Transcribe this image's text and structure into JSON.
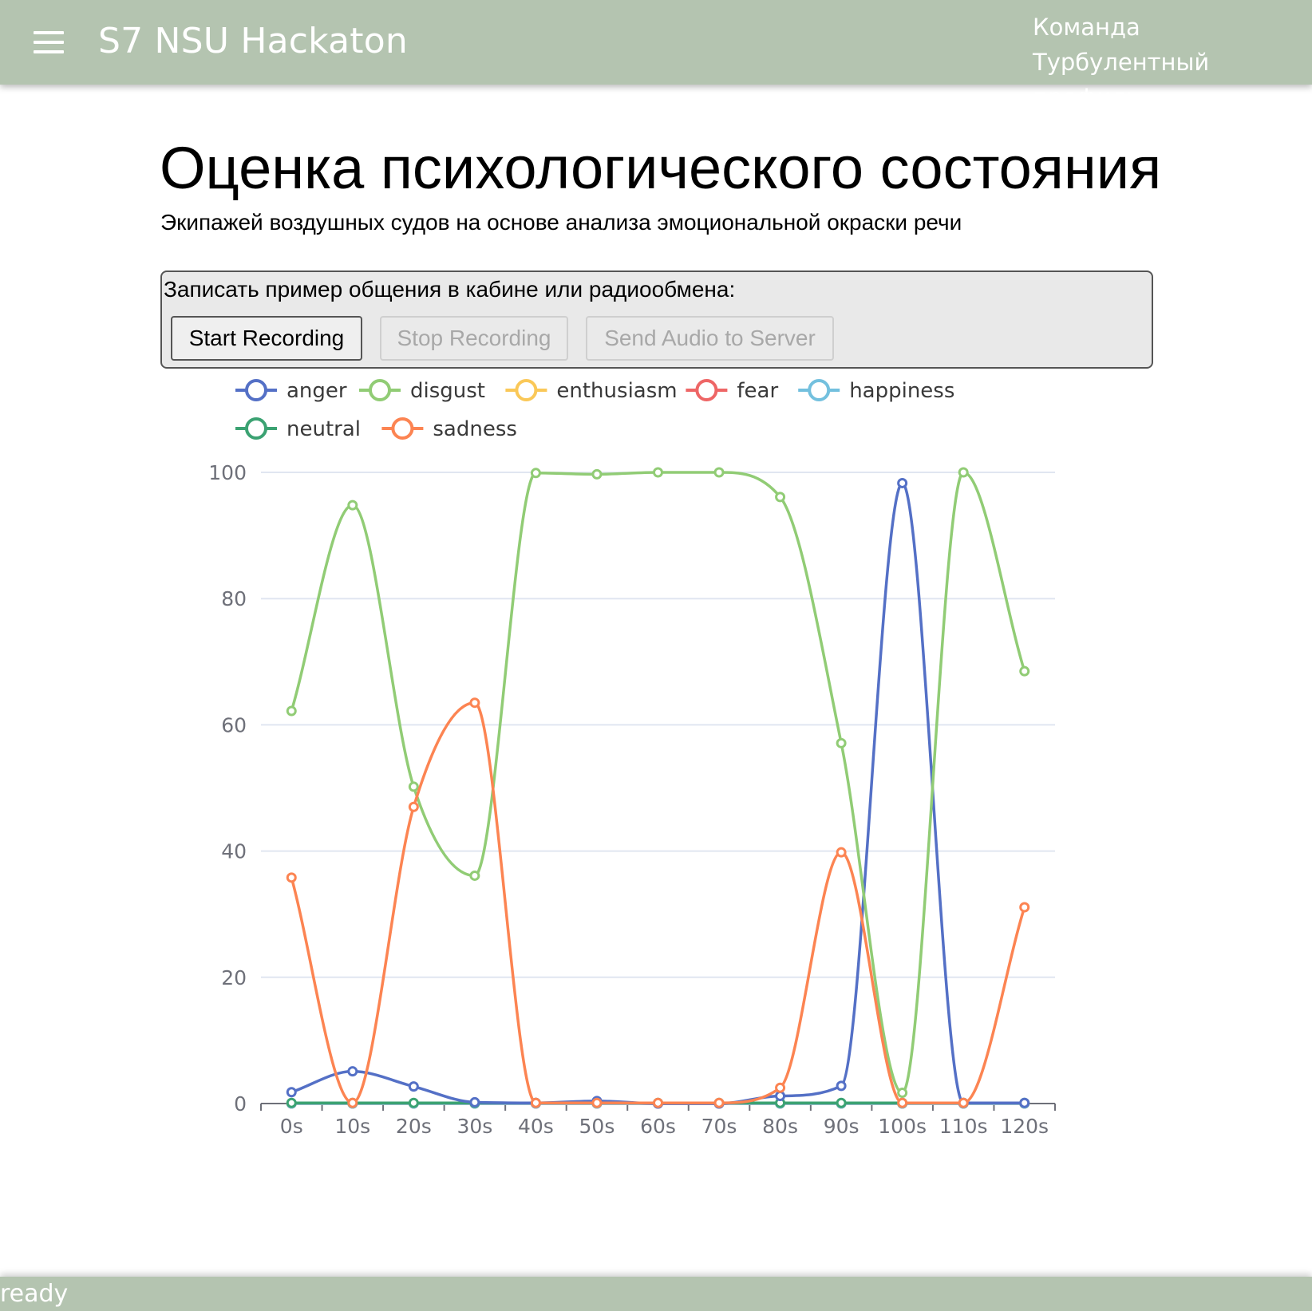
{
  "header": {
    "app_title": "S7 NSU Hackaton",
    "team_line1": "Команда",
    "team_line2": "Турбулентный профиль",
    "menu_icon": "hamburger-menu-icon",
    "bar_color": "#b4c4b0"
  },
  "main": {
    "title": "Оценка психологического состояния",
    "subtitle": "Экипажей воздушных судов на основе анализа эмоциональной окраски речи"
  },
  "recorder": {
    "label": "Записать пример общения в кабине или радиообмена:",
    "start_label": "Start Recording",
    "stop_label": "Stop Recording",
    "send_label": "Send Audio to Server",
    "stop_disabled": true,
    "send_disabled": true
  },
  "status": {
    "text": "ready"
  },
  "chart_data": {
    "type": "line",
    "smooth": true,
    "title": "",
    "xlabel": "",
    "ylabel": "",
    "categories": [
      "0s",
      "10s",
      "20s",
      "30s",
      "40s",
      "50s",
      "60s",
      "70s",
      "80s",
      "90s",
      "100s",
      "110s",
      "120s"
    ],
    "ylim": [
      0,
      100
    ],
    "yticks": [
      0,
      20,
      40,
      60,
      80,
      100
    ],
    "grid": true,
    "legend_position": "top-left",
    "series": [
      {
        "name": "anger",
        "color": "#5470c6",
        "values": [
          1.8,
          5.1,
          2.7,
          0.2,
          0.1,
          0.4,
          0.0,
          0.0,
          1.2,
          2.8,
          98.3,
          0.1,
          0.1
        ]
      },
      {
        "name": "disgust",
        "color": "#91cc75",
        "values": [
          62.2,
          94.8,
          50.2,
          36.1,
          99.9,
          99.7,
          100.0,
          100.0,
          96.1,
          57.1,
          1.7,
          100.0,
          68.5
        ]
      },
      {
        "name": "enthusiasm",
        "color": "#fac858",
        "values": [
          0,
          0,
          0,
          0,
          0,
          0,
          0,
          0,
          0,
          0,
          0,
          0,
          0
        ]
      },
      {
        "name": "fear",
        "color": "#ee6666",
        "values": [
          0,
          0,
          0,
          0,
          0,
          0,
          0,
          0,
          0,
          0,
          0,
          0,
          0
        ]
      },
      {
        "name": "happiness",
        "color": "#73c0de",
        "values": [
          0,
          0,
          0,
          0,
          0,
          0,
          0,
          0,
          0,
          0,
          0,
          0,
          0
        ]
      },
      {
        "name": "neutral",
        "color": "#3ba272",
        "values": [
          0.1,
          0.1,
          0.1,
          0.1,
          0.1,
          0.1,
          0.1,
          0.1,
          0.1,
          0.1,
          0.1,
          0.1,
          0.1
        ]
      },
      {
        "name": "sadness",
        "color": "#fc8452",
        "values": [
          35.8,
          0.1,
          47.0,
          63.5,
          0.1,
          0.1,
          0.1,
          0.1,
          2.5,
          39.8,
          0.1,
          0.1,
          31.1
        ]
      }
    ]
  }
}
